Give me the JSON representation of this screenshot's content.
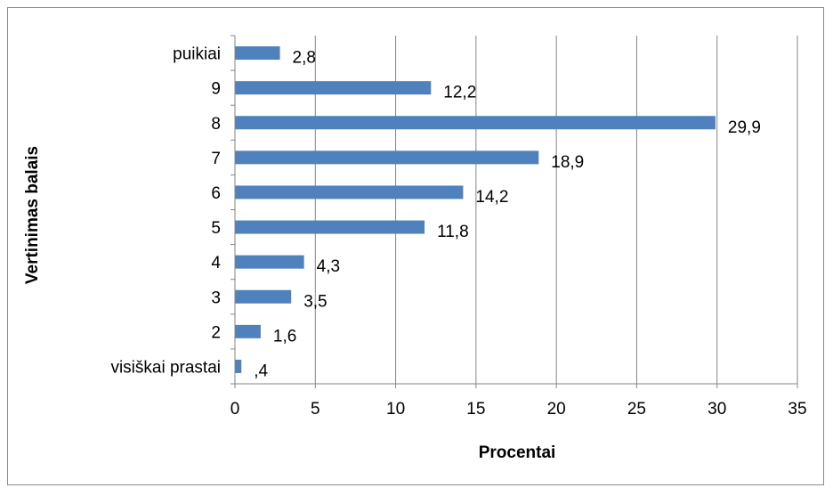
{
  "chart_data": {
    "type": "bar",
    "orientation": "horizontal",
    "categories": [
      "visiškai prastai",
      "2",
      "3",
      "4",
      "5",
      "6",
      "7",
      "8",
      "9",
      "puikiai"
    ],
    "values": [
      0.4,
      1.6,
      3.5,
      4.3,
      11.8,
      14.2,
      18.9,
      29.9,
      12.2,
      2.8
    ],
    "data_labels": [
      ",4",
      "1,6",
      "3,5",
      "4,3",
      "11,8",
      "14,2",
      "18,9",
      "29,9",
      "12,2",
      "2,8"
    ],
    "xlabel": "Procentai",
    "ylabel": "Vertinimas balais",
    "xlim": [
      0,
      35
    ],
    "xticks": [
      0,
      5,
      10,
      15,
      20,
      25,
      30,
      35
    ],
    "xtick_labels": [
      "0",
      "5",
      "10",
      "15",
      "20",
      "25",
      "30",
      "35"
    ],
    "grid": "vertical major gridlines",
    "legend": "none",
    "colors": {
      "bar": "#4f81bd",
      "gridline": "#868686",
      "axis": "#868686",
      "border": "#8c8c8c"
    }
  }
}
